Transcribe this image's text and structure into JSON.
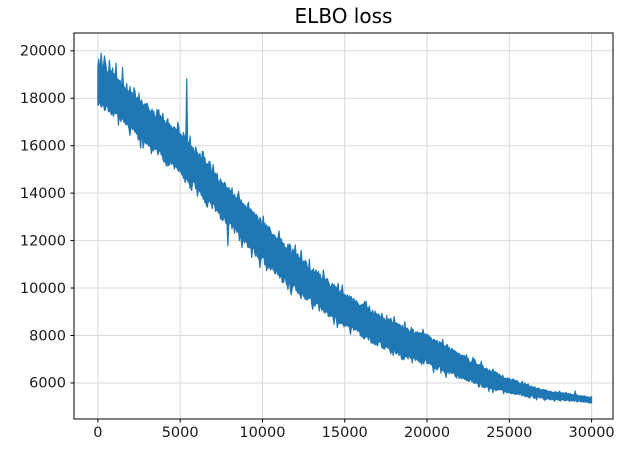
{
  "chart_data": {
    "type": "line",
    "title": "ELBO loss",
    "xlabel": "",
    "ylabel": "",
    "x_ticks": [
      0,
      5000,
      10000,
      15000,
      20000,
      25000,
      30000
    ],
    "y_ticks": [
      6000,
      8000,
      10000,
      12000,
      14000,
      16000,
      18000,
      20000
    ],
    "xlim": [
      -1450,
      31300
    ],
    "ylim": [
      4480,
      20750
    ],
    "grid": true,
    "legend": "none",
    "colors": {
      "line": "#1f77b4",
      "grid": "#d9d9d9",
      "spine": "#000000",
      "text": "#191919",
      "background": "#ffffff"
    },
    "series": [
      {
        "name": "ELBO loss",
        "color": "#1f77b4",
        "style": "noisy-line",
        "x_range": [
          0,
          30000
        ],
        "trend_x": [
          0,
          1250,
          2500,
          3750,
          5000,
          6250,
          7500,
          8750,
          10000,
          11250,
          12500,
          13750,
          15000,
          16250,
          17500,
          18750,
          20000,
          21250,
          22500,
          23750,
          25000,
          26250,
          27500,
          28750,
          30000
        ],
        "trend_mean": [
          18650,
          18000,
          17150,
          16450,
          15700,
          14750,
          13780,
          12850,
          11950,
          11150,
          10400,
          9700,
          9080,
          8560,
          8060,
          7700,
          7400,
          6950,
          6550,
          6170,
          5880,
          5640,
          5470,
          5390,
          5270
        ],
        "trend_spread": [
          1150,
          1050,
          1000,
          1050,
          1100,
          1050,
          1000,
          1050,
          1100,
          1050,
          1000,
          950,
          880,
          850,
          820,
          790,
          770,
          700,
          620,
          520,
          380,
          300,
          230,
          180,
          140
        ],
        "spikes_up": [
          [
            200,
            19900
          ],
          [
            420,
            19780
          ],
          [
            700,
            19600
          ],
          [
            1100,
            19480
          ],
          [
            1500,
            19300
          ],
          [
            5400,
            18820
          ],
          [
            29000,
            5660
          ]
        ],
        "spikes_down": [
          [
            2600,
            15900
          ],
          [
            7900,
            11780
          ]
        ]
      }
    ]
  }
}
